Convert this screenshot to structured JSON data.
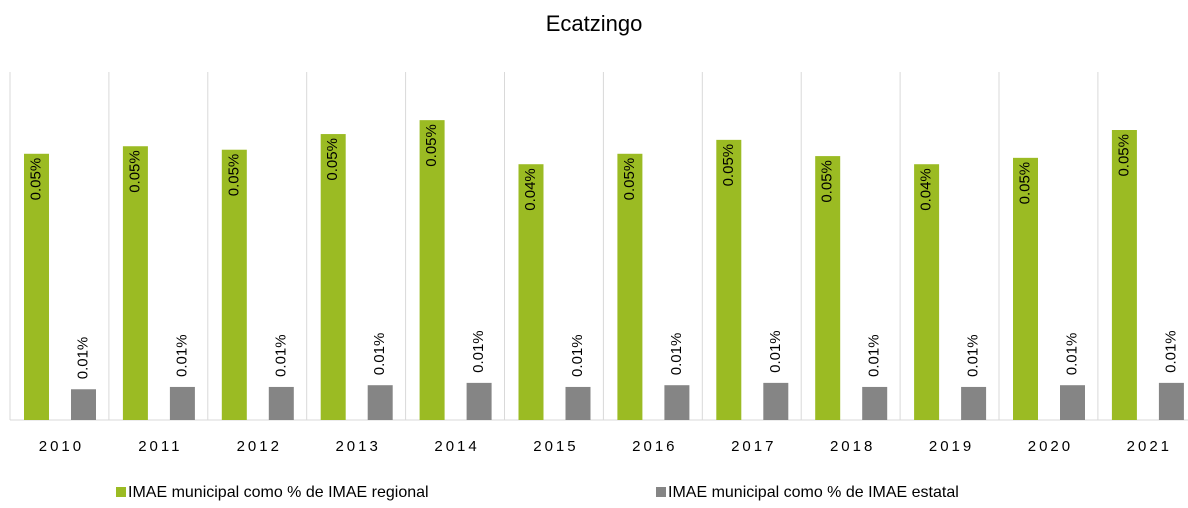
{
  "chart_data": {
    "type": "bar",
    "title": "Ecatzingo",
    "categories": [
      "2010",
      "2011",
      "2012",
      "2013",
      "2014",
      "2015",
      "2016",
      "2017",
      "2018",
      "2019",
      "2020",
      "2021"
    ],
    "series": [
      {
        "name": "IMAE municipal como % de IMAE regional",
        "color": "#9bbb23",
        "values": [
          0.0459,
          0.0472,
          0.0466,
          0.0493,
          0.0517,
          0.0441,
          0.0459,
          0.0483,
          0.0455,
          0.0441,
          0.0452,
          0.05
        ],
        "value_labels": [
          "0.05%",
          "0.05%",
          "0.05%",
          "0.05%",
          "0.05%",
          "0.04%",
          "0.05%",
          "0.05%",
          "0.05%",
          "0.04%",
          "0.05%",
          "0.05%"
        ]
      },
      {
        "name": "IMAE municipal como % de IMAE estatal",
        "color": "#858585",
        "values": [
          0.0053,
          0.0057,
          0.0057,
          0.006,
          0.0064,
          0.0057,
          0.006,
          0.0064,
          0.0057,
          0.0057,
          0.006,
          0.0064
        ],
        "value_labels": [
          "0.01%",
          "0.01%",
          "0.01%",
          "0.01%",
          "0.01%",
          "0.01%",
          "0.01%",
          "0.01%",
          "0.01%",
          "0.01%",
          "0.01%",
          "0.01%"
        ]
      }
    ],
    "ylim": [
      0,
      0.06
    ],
    "grid": true,
    "legend": "bottom"
  }
}
